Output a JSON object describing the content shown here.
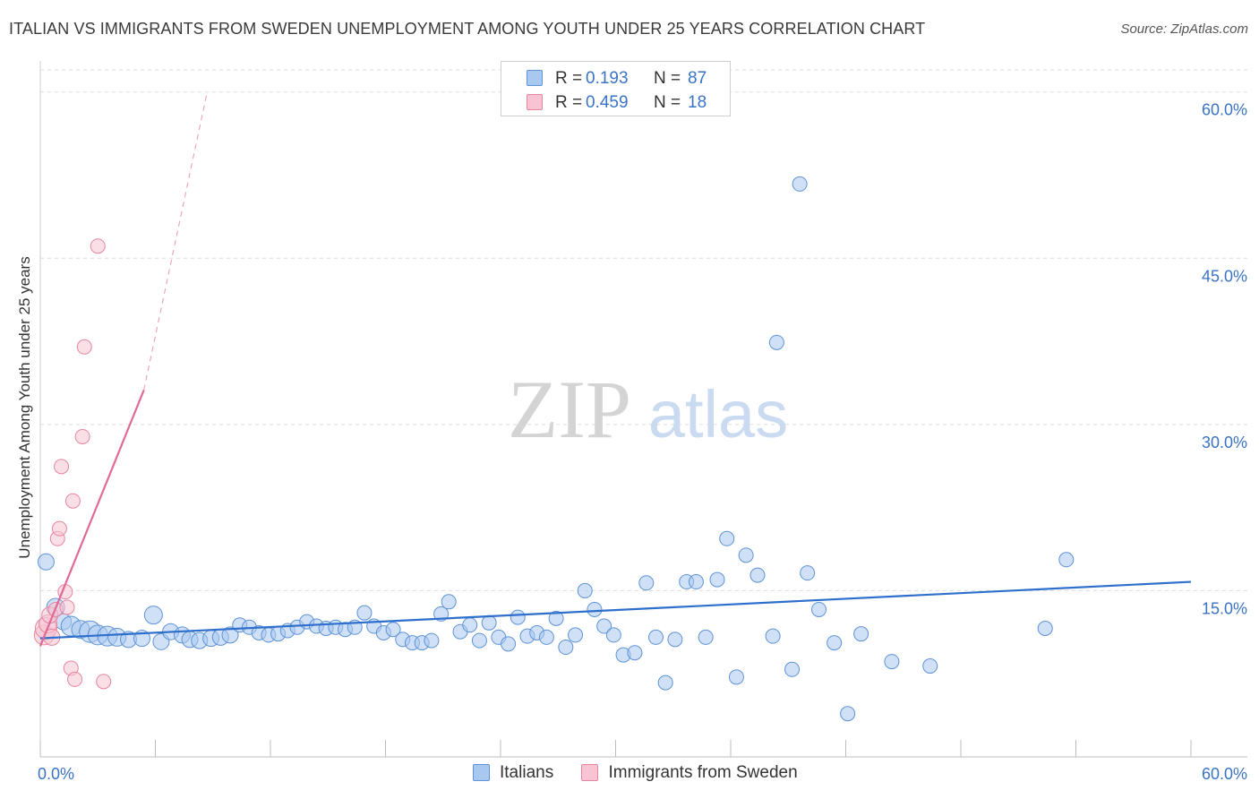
{
  "chart_data": {
    "type": "scatter",
    "title": "ITALIAN VS IMMIGRANTS FROM SWEDEN UNEMPLOYMENT AMONG YOUTH UNDER 25 YEARS CORRELATION CHART",
    "source": "Source: ZipAtlas.com",
    "ylabel": "Unemployment Among Youth under 25 years",
    "xlabel": "",
    "xlim": [
      0,
      60
    ],
    "ylim": [
      0,
      62
    ],
    "x_tick_labels": [
      "0.0%",
      "60.0%"
    ],
    "y_ticks": [
      15,
      30,
      45,
      60
    ],
    "y_tick_labels": [
      "15.0%",
      "30.0%",
      "45.0%",
      "60.0%"
    ],
    "watermark": "ZIPatlas",
    "colors": {
      "italians_fill": "#a9c8f0",
      "italians_stroke": "#5e93d6",
      "italians_line": "#2f6fcc",
      "sweden_fill": "#f8c4d4",
      "sweden_stroke": "#e7859f",
      "sweden_line": "#e06a96",
      "tick_label": "#3b73c4",
      "grid": "#dcdcdc"
    },
    "legend_stats": [
      {
        "r_label": "R =",
        "r_value": "0.193",
        "n_label": "N =",
        "n_value": "87"
      },
      {
        "r_label": "R =",
        "r_value": "0.459",
        "n_label": "N =",
        "n_value": "18"
      }
    ],
    "series": [
      {
        "name": "Italians",
        "trend": {
          "x0": 0.0,
          "y0": 10.7,
          "x1": 60.0,
          "y1": 15.8,
          "style": "solid"
        },
        "points": [
          {
            "x": 0.3,
            "y": 17.6,
            "s": 9
          },
          {
            "x": 0.8,
            "y": 13.5,
            "s": 10
          },
          {
            "x": 1.2,
            "y": 12.2,
            "s": 9
          },
          {
            "x": 1.6,
            "y": 11.8,
            "s": 11
          },
          {
            "x": 2.1,
            "y": 11.5,
            "s": 10
          },
          {
            "x": 2.6,
            "y": 11.3,
            "s": 12
          },
          {
            "x": 3.0,
            "y": 11.0,
            "s": 11
          },
          {
            "x": 3.5,
            "y": 10.9,
            "s": 11
          },
          {
            "x": 4.0,
            "y": 10.8,
            "s": 10
          },
          {
            "x": 4.6,
            "y": 10.6,
            "s": 9
          },
          {
            "x": 5.3,
            "y": 10.7,
            "s": 9
          },
          {
            "x": 5.9,
            "y": 12.8,
            "s": 10
          },
          {
            "x": 6.3,
            "y": 10.4,
            "s": 9
          },
          {
            "x": 6.8,
            "y": 11.3,
            "s": 9
          },
          {
            "x": 7.4,
            "y": 11.0,
            "s": 9
          },
          {
            "x": 7.8,
            "y": 10.6,
            "s": 9
          },
          {
            "x": 8.3,
            "y": 10.5,
            "s": 9
          },
          {
            "x": 8.9,
            "y": 10.7,
            "s": 9
          },
          {
            "x": 9.4,
            "y": 10.8,
            "s": 9
          },
          {
            "x": 9.9,
            "y": 11.0,
            "s": 9
          },
          {
            "x": 10.4,
            "y": 11.9,
            "s": 8
          },
          {
            "x": 10.9,
            "y": 11.7,
            "s": 8
          },
          {
            "x": 11.4,
            "y": 11.2,
            "s": 8
          },
          {
            "x": 11.9,
            "y": 11.0,
            "s": 8
          },
          {
            "x": 12.4,
            "y": 11.1,
            "s": 8
          },
          {
            "x": 12.9,
            "y": 11.4,
            "s": 8
          },
          {
            "x": 13.4,
            "y": 11.7,
            "s": 8
          },
          {
            "x": 13.9,
            "y": 12.2,
            "s": 8
          },
          {
            "x": 14.4,
            "y": 11.8,
            "s": 8
          },
          {
            "x": 14.9,
            "y": 11.6,
            "s": 8
          },
          {
            "x": 15.4,
            "y": 11.7,
            "s": 8
          },
          {
            "x": 15.9,
            "y": 11.5,
            "s": 8
          },
          {
            "x": 16.4,
            "y": 11.7,
            "s": 8
          },
          {
            "x": 16.9,
            "y": 13.0,
            "s": 8
          },
          {
            "x": 17.4,
            "y": 11.8,
            "s": 8
          },
          {
            "x": 17.9,
            "y": 11.2,
            "s": 8
          },
          {
            "x": 18.4,
            "y": 11.5,
            "s": 8
          },
          {
            "x": 18.9,
            "y": 10.6,
            "s": 8
          },
          {
            "x": 19.4,
            "y": 10.3,
            "s": 8
          },
          {
            "x": 19.9,
            "y": 10.3,
            "s": 8
          },
          {
            "x": 20.4,
            "y": 10.5,
            "s": 8
          },
          {
            "x": 20.9,
            "y": 12.9,
            "s": 8
          },
          {
            "x": 21.3,
            "y": 14.0,
            "s": 8
          },
          {
            "x": 21.9,
            "y": 11.3,
            "s": 8
          },
          {
            "x": 22.4,
            "y": 11.9,
            "s": 8
          },
          {
            "x": 22.9,
            "y": 10.5,
            "s": 8
          },
          {
            "x": 23.4,
            "y": 12.1,
            "s": 8
          },
          {
            "x": 23.9,
            "y": 10.8,
            "s": 8
          },
          {
            "x": 24.4,
            "y": 10.2,
            "s": 8
          },
          {
            "x": 24.9,
            "y": 12.6,
            "s": 8
          },
          {
            "x": 25.4,
            "y": 10.9,
            "s": 8
          },
          {
            "x": 25.9,
            "y": 11.2,
            "s": 8
          },
          {
            "x": 26.4,
            "y": 10.8,
            "s": 8
          },
          {
            "x": 26.9,
            "y": 12.5,
            "s": 8
          },
          {
            "x": 27.4,
            "y": 9.9,
            "s": 8
          },
          {
            "x": 27.9,
            "y": 11.0,
            "s": 8
          },
          {
            "x": 28.4,
            "y": 15.0,
            "s": 8
          },
          {
            "x": 28.9,
            "y": 13.3,
            "s": 8
          },
          {
            "x": 29.4,
            "y": 11.8,
            "s": 8
          },
          {
            "x": 29.9,
            "y": 11.0,
            "s": 8
          },
          {
            "x": 30.4,
            "y": 9.2,
            "s": 8
          },
          {
            "x": 31.0,
            "y": 9.4,
            "s": 8
          },
          {
            "x": 31.6,
            "y": 15.7,
            "s": 8
          },
          {
            "x": 32.1,
            "y": 10.8,
            "s": 8
          },
          {
            "x": 32.6,
            "y": 6.7,
            "s": 8
          },
          {
            "x": 33.1,
            "y": 10.6,
            "s": 8
          },
          {
            "x": 33.7,
            "y": 15.8,
            "s": 8
          },
          {
            "x": 34.2,
            "y": 15.8,
            "s": 8
          },
          {
            "x": 34.7,
            "y": 10.8,
            "s": 8
          },
          {
            "x": 35.3,
            "y": 16.0,
            "s": 8
          },
          {
            "x": 35.8,
            "y": 19.7,
            "s": 8
          },
          {
            "x": 36.3,
            "y": 7.2,
            "s": 8
          },
          {
            "x": 36.8,
            "y": 18.2,
            "s": 8
          },
          {
            "x": 37.4,
            "y": 16.4,
            "s": 8
          },
          {
            "x": 38.2,
            "y": 10.9,
            "s": 8
          },
          {
            "x": 38.4,
            "y": 37.4,
            "s": 8
          },
          {
            "x": 39.2,
            "y": 7.9,
            "s": 8
          },
          {
            "x": 39.6,
            "y": 51.7,
            "s": 8
          },
          {
            "x": 40.0,
            "y": 16.6,
            "s": 8
          },
          {
            "x": 40.6,
            "y": 13.3,
            "s": 8
          },
          {
            "x": 41.4,
            "y": 10.3,
            "s": 8
          },
          {
            "x": 42.1,
            "y": 3.9,
            "s": 8
          },
          {
            "x": 42.8,
            "y": 11.1,
            "s": 8
          },
          {
            "x": 44.4,
            "y": 8.6,
            "s": 8
          },
          {
            "x": 46.4,
            "y": 8.2,
            "s": 8
          },
          {
            "x": 52.4,
            "y": 11.6,
            "s": 8
          },
          {
            "x": 53.5,
            "y": 17.8,
            "s": 8
          }
        ]
      },
      {
        "name": "Immigrants from Sweden",
        "trend": {
          "x0": 0.0,
          "y0": 10.0,
          "x1": 5.4,
          "y1": 33.1,
          "x2": 8.7,
          "y2": 60.0,
          "style": "solid-then-dashed"
        },
        "points": [
          {
            "x": 0.2,
            "y": 11.0,
            "s": 11
          },
          {
            "x": 0.3,
            "y": 11.6,
            "s": 12
          },
          {
            "x": 0.4,
            "y": 12.0,
            "s": 10
          },
          {
            "x": 0.5,
            "y": 12.8,
            "s": 9
          },
          {
            "x": 0.6,
            "y": 10.8,
            "s": 9
          },
          {
            "x": 0.8,
            "y": 13.3,
            "s": 8
          },
          {
            "x": 0.9,
            "y": 19.7,
            "s": 8
          },
          {
            "x": 1.0,
            "y": 20.6,
            "s": 8
          },
          {
            "x": 1.1,
            "y": 26.2,
            "s": 8
          },
          {
            "x": 1.3,
            "y": 14.9,
            "s": 8
          },
          {
            "x": 1.4,
            "y": 13.5,
            "s": 8
          },
          {
            "x": 1.6,
            "y": 8.0,
            "s": 8
          },
          {
            "x": 1.7,
            "y": 23.1,
            "s": 8
          },
          {
            "x": 1.8,
            "y": 7.0,
            "s": 8
          },
          {
            "x": 2.2,
            "y": 28.9,
            "s": 8
          },
          {
            "x": 2.3,
            "y": 37.0,
            "s": 8
          },
          {
            "x": 3.0,
            "y": 46.1,
            "s": 8
          },
          {
            "x": 3.3,
            "y": 6.8,
            "s": 8
          }
        ]
      }
    ]
  }
}
